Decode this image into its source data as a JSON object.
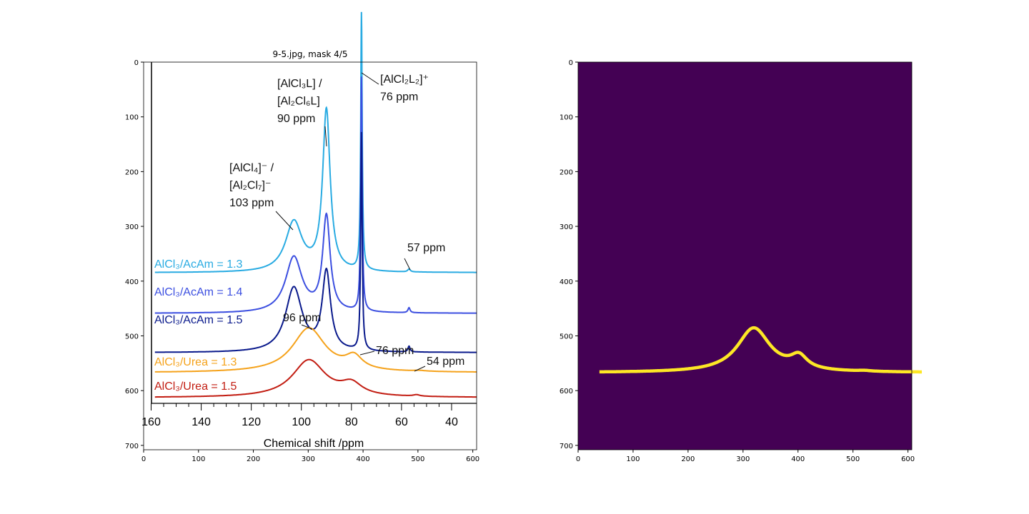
{
  "chart_data": [
    {
      "type": "image",
      "title": "9-5.jpg, mask 4/5",
      "xlim": [
        0,
        607
      ],
      "ylim": [
        708,
        0
      ],
      "xticks": [
        0,
        100,
        200,
        300,
        400,
        500,
        600
      ],
      "yticks": [
        0,
        100,
        200,
        300,
        400,
        500,
        600,
        700
      ],
      "image": {
        "xlabel": "Chemical shift /ppm",
        "xlim": [
          163,
          30
        ],
        "xticks": [
          160,
          140,
          120,
          100,
          80,
          60,
          40
        ],
        "series": [
          {
            "name": "AlCl₃/AcAm = 1.3",
            "color": "#29abe2"
          },
          {
            "name": "AlCl₃/AcAm = 1.4",
            "color": "#3c4fe0"
          },
          {
            "name": "AlCl₃/AcAm = 1.5",
            "color": "#0a1a8c"
          },
          {
            "name": "AlCl₃/Urea = 1.3",
            "color": "#f5a21b"
          },
          {
            "name": "AlCl₃/Urea = 1.5",
            "color": "#c21d12"
          }
        ],
        "annotations": [
          {
            "lines": [
              "[AlCl₃L] /",
              "[Al₂Cl₆L]",
              "90 ppm"
            ]
          },
          {
            "lines": [
              "[AlCl₂L₂]⁺",
              "76 ppm"
            ]
          },
          {
            "lines": [
              "[AlCl₄]⁻ /",
              "[Al₂Cl₇]⁻",
              "103 ppm"
            ]
          },
          {
            "lines": [
              "57 ppm"
            ]
          },
          {
            "lines": [
              "96 ppm"
            ]
          },
          {
            "lines": [
              "76 ppm"
            ]
          },
          {
            "lines": [
              "54 ppm"
            ]
          }
        ]
      }
    },
    {
      "type": "mask",
      "xlim": [
        0,
        607
      ],
      "ylim": [
        708,
        0
      ],
      "xticks": [
        0,
        100,
        200,
        300,
        400,
        500,
        600
      ],
      "yticks": [
        0,
        100,
        200,
        300,
        400,
        500,
        600,
        700
      ],
      "background": "#440154",
      "color": "#fde725"
    }
  ]
}
